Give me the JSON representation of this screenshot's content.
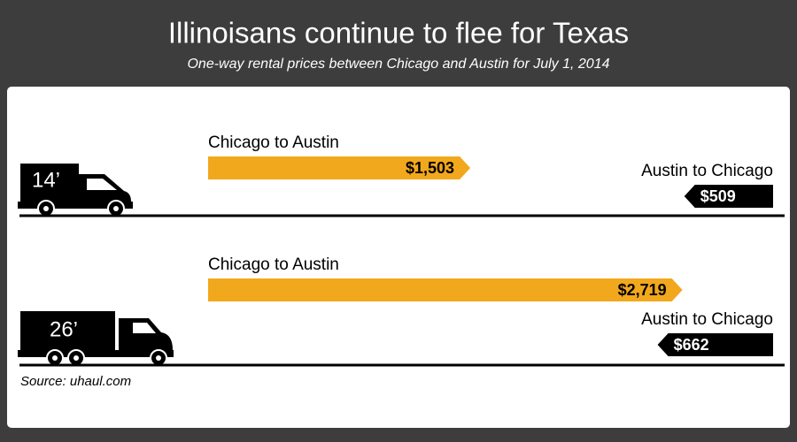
{
  "chart_data": {
    "type": "arrow-bar",
    "title": "Illinoisans continue to flee for Texas",
    "subtitle": "One-way rental prices between Chicago and Austin for July 1, 2014",
    "source": "Source: uhaul.com",
    "categories": [
      "14’",
      "26’"
    ],
    "series": [
      {
        "name": "Chicago to Austin",
        "color": "#f2a81d",
        "values": [
          1503,
          2719
        ],
        "value_labels": [
          "$1,503",
          "$2,719"
        ]
      },
      {
        "name": "Austin to Chicago",
        "color": "#000000",
        "values": [
          509,
          662
        ],
        "value_labels": [
          "$509",
          "$662"
        ]
      }
    ]
  }
}
